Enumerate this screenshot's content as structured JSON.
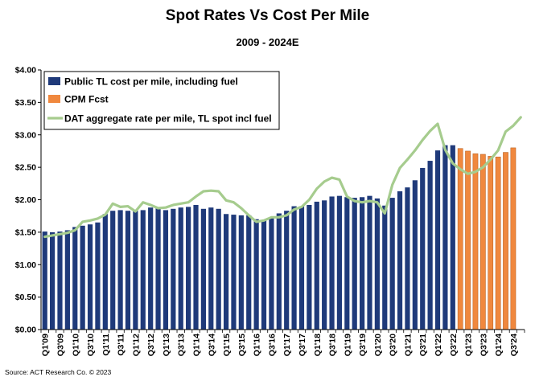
{
  "chart_data": {
    "type": "bar",
    "title": "Spot Rates Vs Cost Per Mile",
    "subtitle": "2009 - 2024E",
    "source": "Source: ACT Research Co. © 2023",
    "ylim": [
      0,
      4
    ],
    "y_tick_values": [
      0,
      0.5,
      1,
      1.5,
      2,
      2.5,
      3,
      3.5,
      4
    ],
    "y_tick_labels": [
      "$0.00",
      "$0.50",
      "$1.00",
      "$1.50",
      "$2.00",
      "$2.50",
      "$3.00",
      "$3.50",
      "$4.00"
    ],
    "grid": false,
    "legend_position": "top-left",
    "categories": [
      "Q1'09",
      "Q2'09",
      "Q3'09",
      "Q4'09",
      "Q1'10",
      "Q2'10",
      "Q3'10",
      "Q4'10",
      "Q1'11",
      "Q2'11",
      "Q3'11",
      "Q4'11",
      "Q1'12",
      "Q2'12",
      "Q3'12",
      "Q4'12",
      "Q1'13",
      "Q2'13",
      "Q3'13",
      "Q4'13",
      "Q1'14",
      "Q2'14",
      "Q3'14",
      "Q4'14",
      "Q1'15",
      "Q2'15",
      "Q3'15",
      "Q4'15",
      "Q1'16",
      "Q2'16",
      "Q3'16",
      "Q4'16",
      "Q1'17",
      "Q2'17",
      "Q3'17",
      "Q4'17",
      "Q1'18",
      "Q2'18",
      "Q3'18",
      "Q4'18",
      "Q1'19",
      "Q2'19",
      "Q3'19",
      "Q4'19",
      "Q1'20",
      "Q2'20",
      "Q3'20",
      "Q4'20",
      "Q1'21",
      "Q2'21",
      "Q3'21",
      "Q4'21",
      "Q1'22",
      "Q2'22",
      "Q3'22",
      "Q4'22",
      "Q1'23",
      "Q2'23",
      "Q3'23",
      "Q4'23",
      "Q1'24",
      "Q2'24",
      "Q3'24",
      "Q4'24"
    ],
    "x_tick_labels": [
      "Q1'09",
      "Q3'09",
      "Q1'10",
      "Q3'10",
      "Q1'11",
      "Q3'11",
      "Q1'12",
      "Q3'12",
      "Q1'13",
      "Q3'13",
      "Q1'14",
      "Q3'14",
      "Q1'15",
      "Q3'15",
      "Q1'16",
      "Q3'16",
      "Q1'17",
      "Q3'17",
      "Q1'18",
      "Q3'18",
      "Q1'19",
      "Q3'19",
      "Q1'20",
      "Q3'20",
      "Q1'21",
      "Q3'21",
      "Q1'22",
      "Q3'22",
      "Q1'23",
      "Q3'23",
      "Q1'24",
      "Q3'24"
    ],
    "series": [
      {
        "name": "Public TL cost per mile, including fuel",
        "kind": "bar",
        "color": "#1F3A7A",
        "values": [
          1.51,
          1.5,
          1.51,
          1.53,
          1.58,
          1.6,
          1.62,
          1.65,
          1.78,
          1.83,
          1.84,
          1.83,
          1.83,
          1.84,
          1.88,
          1.87,
          1.84,
          1.86,
          1.88,
          1.89,
          1.92,
          1.86,
          1.88,
          1.86,
          1.78,
          1.77,
          1.76,
          1.76,
          1.7,
          1.68,
          1.72,
          1.79,
          1.83,
          1.9,
          1.9,
          1.92,
          1.97,
          1.99,
          2.05,
          2.06,
          2.04,
          2.03,
          2.04,
          2.06,
          2.02,
          1.91,
          2.03,
          2.13,
          2.19,
          2.3,
          2.49,
          2.6,
          2.76,
          2.84,
          2.84,
          null,
          null,
          null,
          null,
          null,
          null,
          null,
          null,
          null
        ]
      },
      {
        "name": "CPM Fcst",
        "kind": "bar",
        "color": "#F0883E",
        "values": [
          null,
          null,
          null,
          null,
          null,
          null,
          null,
          null,
          null,
          null,
          null,
          null,
          null,
          null,
          null,
          null,
          null,
          null,
          null,
          null,
          null,
          null,
          null,
          null,
          null,
          null,
          null,
          null,
          null,
          null,
          null,
          null,
          null,
          null,
          null,
          null,
          null,
          null,
          null,
          null,
          null,
          null,
          null,
          null,
          null,
          null,
          null,
          null,
          null,
          null,
          null,
          null,
          null,
          null,
          null,
          2.79,
          2.75,
          2.71,
          2.7,
          2.67,
          2.66,
          2.73,
          2.8,
          null
        ]
      },
      {
        "name": "DAT aggregate rate per mile, TL spot  incl fuel",
        "kind": "line",
        "color": "#A6CC8E",
        "values": [
          1.43,
          1.45,
          1.47,
          1.49,
          1.53,
          1.66,
          1.68,
          1.71,
          1.77,
          1.94,
          1.89,
          1.9,
          1.82,
          1.96,
          1.92,
          1.87,
          1.88,
          1.92,
          1.94,
          1.96,
          2.05,
          2.13,
          2.14,
          2.13,
          1.99,
          1.96,
          1.87,
          1.76,
          1.66,
          1.68,
          1.73,
          1.73,
          1.76,
          1.85,
          1.89,
          2.0,
          2.17,
          2.28,
          2.34,
          2.31,
          2.05,
          1.98,
          1.96,
          1.98,
          1.96,
          1.79,
          2.23,
          2.49,
          2.62,
          2.76,
          2.92,
          3.06,
          3.17,
          2.77,
          2.56,
          2.47,
          2.4,
          2.43,
          2.5,
          2.62,
          2.76,
          3.05,
          3.14,
          3.27
        ]
      }
    ]
  }
}
